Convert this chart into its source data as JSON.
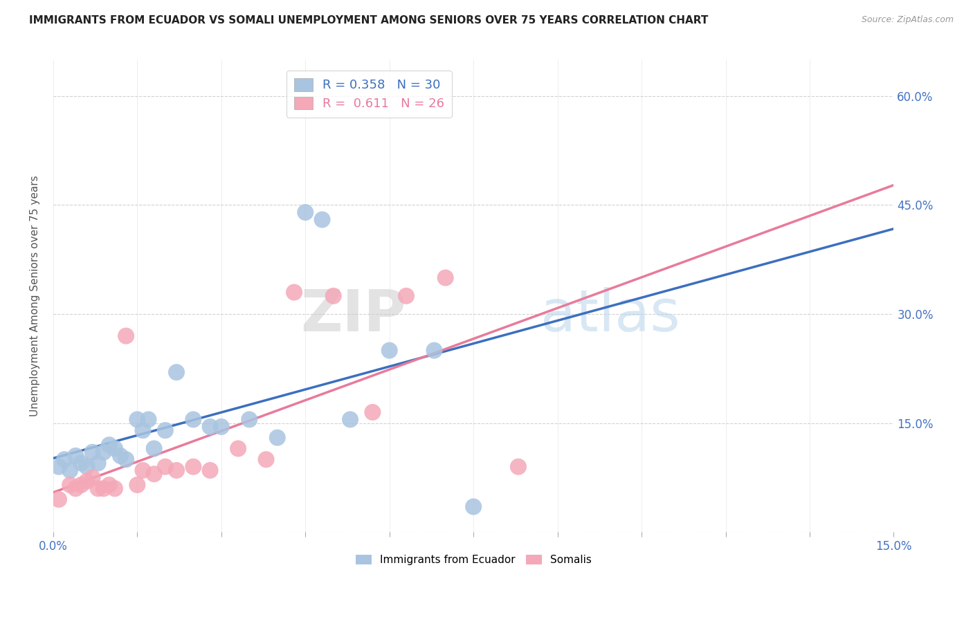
{
  "title": "IMMIGRANTS FROM ECUADOR VS SOMALI UNEMPLOYMENT AMONG SENIORS OVER 75 YEARS CORRELATION CHART",
  "source": "Source: ZipAtlas.com",
  "ylabel_label": "Unemployment Among Seniors over 75 years",
  "legend_ecuador": "Immigrants from Ecuador",
  "legend_somali": "Somalis",
  "r_ecuador": "0.358",
  "n_ecuador": "30",
  "r_somali": "0.611",
  "n_somali": "26",
  "color_ecuador": "#a8c4e0",
  "color_somali": "#f4a8b8",
  "line_color_ecuador": "#3c6fbe",
  "line_color_somali": "#e87a9a",
  "ecuador_x": [
    0.001,
    0.002,
    0.003,
    0.004,
    0.005,
    0.006,
    0.007,
    0.008,
    0.009,
    0.01,
    0.011,
    0.012,
    0.013,
    0.015,
    0.016,
    0.017,
    0.018,
    0.02,
    0.022,
    0.025,
    0.028,
    0.03,
    0.035,
    0.04,
    0.045,
    0.048,
    0.053,
    0.06,
    0.068,
    0.075
  ],
  "ecuador_y": [
    0.09,
    0.1,
    0.085,
    0.105,
    0.095,
    0.09,
    0.11,
    0.095,
    0.11,
    0.12,
    0.115,
    0.105,
    0.1,
    0.155,
    0.14,
    0.155,
    0.115,
    0.14,
    0.22,
    0.155,
    0.145,
    0.145,
    0.155,
    0.13,
    0.44,
    0.43,
    0.155,
    0.25,
    0.25,
    0.035
  ],
  "somali_x": [
    0.001,
    0.003,
    0.004,
    0.005,
    0.006,
    0.007,
    0.008,
    0.009,
    0.01,
    0.011,
    0.013,
    0.015,
    0.016,
    0.018,
    0.02,
    0.022,
    0.025,
    0.028,
    0.033,
    0.038,
    0.043,
    0.05,
    0.057,
    0.063,
    0.07,
    0.083
  ],
  "somali_y": [
    0.045,
    0.065,
    0.06,
    0.065,
    0.07,
    0.075,
    0.06,
    0.06,
    0.065,
    0.06,
    0.27,
    0.065,
    0.085,
    0.08,
    0.09,
    0.085,
    0.09,
    0.085,
    0.115,
    0.1,
    0.33,
    0.325,
    0.165,
    0.325,
    0.35,
    0.09
  ],
  "xlim": [
    0.0,
    0.15
  ],
  "ylim": [
    0.0,
    0.65
  ],
  "xtick_positions": [
    0.0,
    0.015,
    0.03,
    0.045,
    0.06,
    0.075,
    0.09,
    0.105,
    0.12,
    0.135,
    0.15
  ],
  "ytick_positions": [
    0.0,
    0.15,
    0.3,
    0.45,
    0.6
  ],
  "background_color": "#ffffff",
  "grid_color": "#cccccc"
}
